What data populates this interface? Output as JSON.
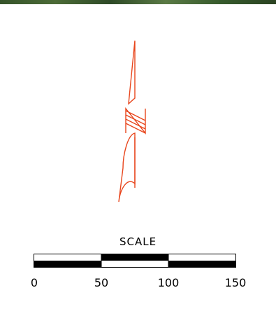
{
  "scale": {
    "title": "SCALE",
    "ticks": [
      "0",
      "50",
      "100",
      "150"
    ]
  },
  "colors": {
    "north_arrow": "#e8461d",
    "scale_fill": "#000000",
    "scale_empty": "#ffffff"
  },
  "icons": {
    "north_arrow": "north-arrow-icon"
  }
}
